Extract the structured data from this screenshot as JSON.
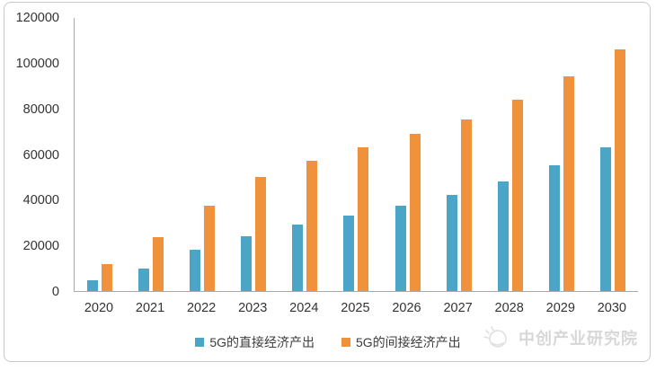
{
  "watermark": {
    "brand": "中创产业研究院",
    "logo": "zhongchuang-logo"
  },
  "colors": {
    "direct_series": "#4AA5C6",
    "indirect_series": "#F0913C",
    "axis_line": "#ababab",
    "tick_text": "#333333",
    "watermark_text": "#d7d7d7",
    "card_border": "#c9c9c9"
  },
  "chart_data": {
    "type": "bar",
    "title": "",
    "xlabel": "",
    "ylabel": "",
    "categories": [
      "2020",
      "2021",
      "2022",
      "2023",
      "2024",
      "2025",
      "2026",
      "2027",
      "2028",
      "2029",
      "2030"
    ],
    "series": [
      {
        "name": "5G的直接经济产出",
        "color": "#4AA5C6",
        "values": [
          4840,
          10000,
          18000,
          24000,
          29000,
          33000,
          37500,
          42000,
          48000,
          55000,
          63000
        ]
      },
      {
        "name": "5G的间接经济产出",
        "color": "#F0913C",
        "values": [
          12000,
          23500,
          37500,
          50000,
          57000,
          63000,
          69000,
          75000,
          84000,
          94000,
          106000
        ]
      }
    ],
    "ylim": [
      0,
      120000
    ],
    "yticks": [
      0,
      20000,
      40000,
      60000,
      80000,
      100000,
      120000
    ],
    "grid": false,
    "legend_position": "bottom"
  }
}
